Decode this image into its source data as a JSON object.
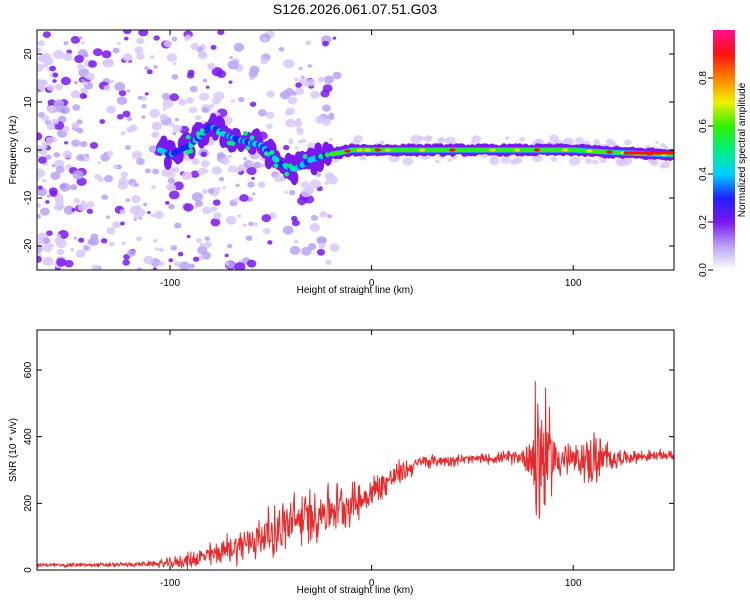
{
  "title": "S126.2026.061.07.51.G03",
  "chart_data": [
    {
      "type": "heatmap",
      "name": "spectrogram",
      "xlabel": "Height of straight line (km)",
      "ylabel": "Frequency (Hz)",
      "xlim": [
        -166,
        150
      ],
      "ylim": [
        -25,
        25
      ],
      "xticks": [
        -100,
        0,
        100
      ],
      "yticks": [
        -20,
        -10,
        0,
        10,
        20
      ],
      "colorbar": {
        "label": "Normalized spectral amplitude",
        "range": [
          0,
          1
        ],
        "ticks": [
          0.0,
          0.2,
          0.4,
          0.6,
          0.8
        ],
        "tick_labels": [
          "0.0",
          "0.2",
          "0.4",
          "0.6",
          "0.8"
        ],
        "colors": [
          "#ffffff",
          "#b9a2f5",
          "#7a18f0",
          "#2020ff",
          "#00d0ff",
          "#00f080",
          "#30f000",
          "#f0f000",
          "#ff8000",
          "#ff1010",
          "#ff1090"
        ]
      },
      "ridge": {
        "x": [
          -166,
          -140,
          -120,
          -105,
          -100,
          -90,
          -80,
          -72,
          -65,
          -55,
          -45,
          -38,
          -30,
          -22,
          -15,
          -10,
          -5,
          0,
          10,
          30,
          60,
          80,
          100,
          120,
          150
        ],
        "y": [
          0,
          0,
          0,
          0,
          -1,
          1,
          5,
          3,
          2,
          1,
          -3,
          -4,
          -2,
          -1,
          -0.5,
          0,
          0,
          0,
          0,
          0,
          0,
          0,
          0,
          -0.5,
          -1
        ]
      }
    },
    {
      "type": "line",
      "name": "snr",
      "xlabel": "Height of straight line (km)",
      "ylabel": "SNR (10 * v/v)",
      "xlim": [
        -166,
        150
      ],
      "ylim": [
        0,
        720
      ],
      "xticks": [
        -100,
        0,
        100
      ],
      "yticks": [
        0,
        200,
        400,
        600
      ],
      "color": "#e8292b",
      "trend": {
        "x": [
          -166,
          -130,
          -100,
          -90,
          -80,
          -60,
          -40,
          -20,
          -5,
          5,
          15,
          25,
          40,
          60,
          75,
          80,
          90,
          100,
          110,
          120,
          130,
          150
        ],
        "y": [
          15,
          15,
          20,
          30,
          45,
          85,
          140,
          185,
          210,
          255,
          295,
          325,
          330,
          335,
          340,
          345,
          340,
          330,
          330,
          335,
          340,
          345
        ]
      },
      "noise_amplitude": {
        "x": [
          -166,
          -110,
          -90,
          -60,
          -40,
          -20,
          0,
          10,
          25,
          60,
          75,
          80,
          82,
          85,
          90,
          100,
          105,
          110,
          115,
          125,
          150
        ],
        "y": [
          6,
          8,
          25,
          60,
          90,
          80,
          50,
          45,
          20,
          15,
          25,
          120,
          330,
          220,
          90,
          45,
          60,
          95,
          60,
          20,
          15
        ]
      }
    }
  ]
}
